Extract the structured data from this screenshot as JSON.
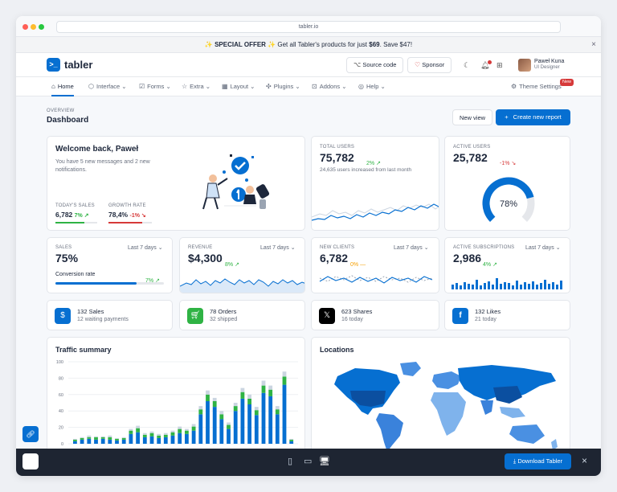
{
  "browser": {
    "url": "tabler.io"
  },
  "offer": {
    "pre": "✨",
    "highlight": "SPECIAL OFFER",
    "post": "✨ Get all Tabler's products for just",
    "price": "$69",
    "save": ". Save $47!",
    "close": "×"
  },
  "header": {
    "brand": "tabler",
    "source_code": "Source code",
    "sponsor": "Sponsor",
    "user_name": "Paweł Kuna",
    "user_role": "UI Designer"
  },
  "nav": {
    "items": [
      {
        "label": "Home",
        "icon": "home-icon"
      },
      {
        "label": "Interface",
        "icon": "package-icon"
      },
      {
        "label": "Forms",
        "icon": "checkbox-icon"
      },
      {
        "label": "Extra",
        "icon": "star-icon"
      },
      {
        "label": "Layout",
        "icon": "layout-icon"
      },
      {
        "label": "Plugins",
        "icon": "puzzle-icon"
      },
      {
        "label": "Addons",
        "icon": "gift-icon"
      },
      {
        "label": "Help",
        "icon": "lifebuoy-icon"
      }
    ],
    "theme_settings": "Theme Settings",
    "new_badge": "New"
  },
  "page": {
    "pretitle": "OVERVIEW",
    "title": "Dashboard",
    "new_view": "New view",
    "create_report": "Create new report"
  },
  "welcome": {
    "title": "Welcome back, Paweł",
    "text": "You have 5 new messages and 2 new notifications.",
    "sales_label": "TODAY'S SALES",
    "sales_value": "6,782",
    "sales_change": "7%",
    "growth_label": "GROWTH RATE",
    "growth_value": "78,4%",
    "growth_change": "-1%"
  },
  "total_users": {
    "label": "TOTAL USERS",
    "value": "75,782",
    "change": "2%",
    "note": "24,635 users increased from last month"
  },
  "active_users": {
    "label": "ACTIVE USERS",
    "value": "25,782",
    "change": "-1%",
    "gauge": "78%",
    "gauge_value": 0.78
  },
  "sales": {
    "label": "SALES",
    "period": "Last 7 days",
    "value": "75%",
    "conv_label": "Conversion rate",
    "conv_value": "7%",
    "conv_fraction": 0.75
  },
  "revenue": {
    "label": "REVENUE",
    "period": "Last 7 days",
    "value": "$4,300",
    "change": "8%"
  },
  "new_clients": {
    "label": "NEW CLIENTS",
    "period": "Last 7 days",
    "value": "6,782",
    "change": "0%"
  },
  "subscriptions": {
    "label": "ACTIVE SUBSCRIPTIONS",
    "period": "Last 7 days",
    "value": "2,986",
    "change": "4%"
  },
  "stats": [
    {
      "title": "132 Sales",
      "sub": "12 waiting payments",
      "color": "#066fd1",
      "icon": "dollar-icon"
    },
    {
      "title": "78 Orders",
      "sub": "32 shipped",
      "color": "#2fb344",
      "icon": "cart-icon"
    },
    {
      "title": "623 Shares",
      "sub": "16 today",
      "color": "#000000",
      "icon": "x-logo-icon"
    },
    {
      "title": "132 Likes",
      "sub": "21 today",
      "color": "#066fd1",
      "icon": "facebook-icon"
    }
  ],
  "traffic": {
    "title": "Traffic summary"
  },
  "locations": {
    "title": "Locations"
  },
  "chart_data": {
    "type": "bar",
    "title": "Traffic summary",
    "ylim": [
      0,
      100
    ],
    "yticks": [
      "100",
      "80",
      "60",
      "40",
      "20",
      "0"
    ],
    "series": [
      {
        "name": "",
        "color": "#066fd1",
        "values": [
          3,
          5,
          6,
          5,
          6,
          5,
          4,
          5,
          12,
          14,
          8,
          9,
          7,
          8,
          10,
          13,
          12,
          16,
          36,
          52,
          45,
          30,
          18,
          40,
          55,
          48,
          35,
          62,
          58,
          36,
          72,
          3
        ]
      },
      {
        "name": "",
        "color": "#2fb344",
        "values": [
          2,
          2,
          2,
          3,
          2,
          3,
          2,
          2,
          4,
          5,
          3,
          4,
          3,
          3,
          4,
          5,
          4,
          5,
          6,
          8,
          7,
          6,
          5,
          6,
          8,
          7,
          6,
          9,
          8,
          6,
          10,
          2
        ]
      },
      {
        "name": "",
        "color": "#cbd5e1",
        "values": [
          1,
          1,
          2,
          1,
          1,
          2,
          1,
          1,
          2,
          3,
          2,
          2,
          2,
          2,
          2,
          3,
          2,
          3,
          4,
          5,
          4,
          4,
          3,
          4,
          5,
          5,
          4,
          6,
          5,
          4,
          6,
          1
        ]
      }
    ]
  },
  "footer": {
    "download": "Download Tabler",
    "close": "×"
  }
}
